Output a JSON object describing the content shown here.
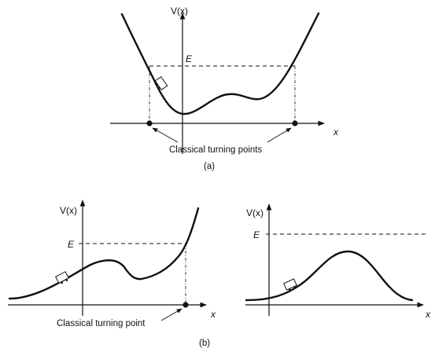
{
  "panel_a": {
    "y_axis_label": "V(x)",
    "x_axis_label": "x",
    "energy_label": "E",
    "annotation": "Classical turning points",
    "caption": "(a)"
  },
  "panel_b": {
    "caption": "(b)",
    "left": {
      "y_axis_label": "V(x)",
      "x_axis_label": "x",
      "energy_label": "E",
      "annotation": "Classical turning point"
    },
    "right": {
      "y_axis_label": "V(x)",
      "x_axis_label": "x",
      "energy_label": "E"
    }
  }
}
